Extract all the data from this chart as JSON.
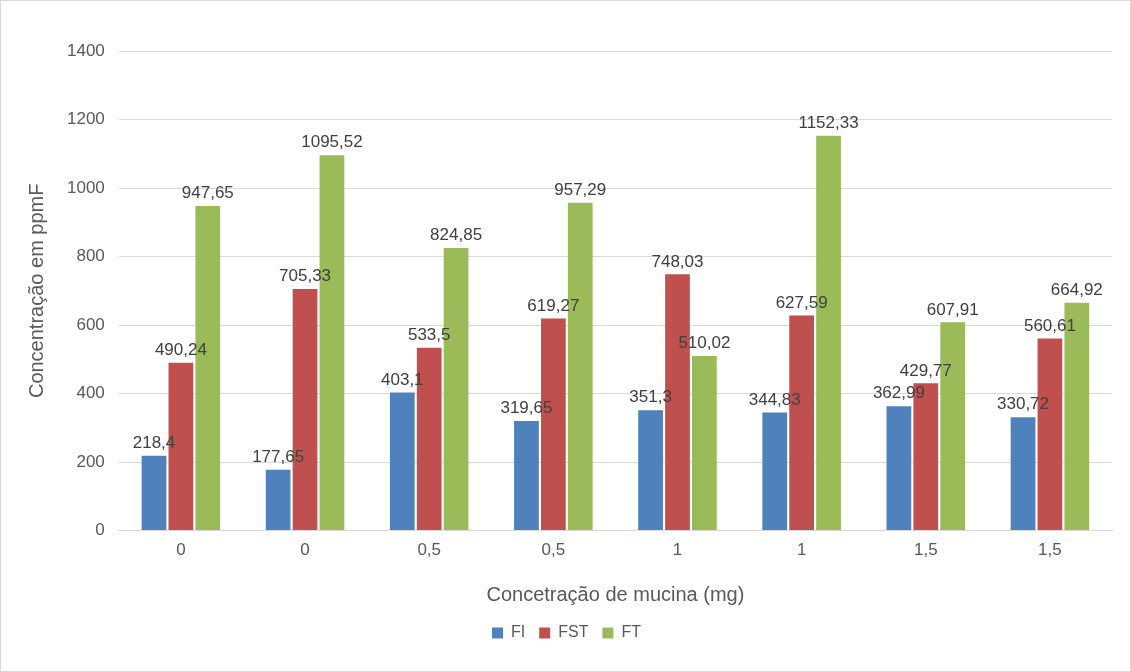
{
  "chart_data": {
    "type": "bar",
    "xlabel": "Concetração de mucina (mg)",
    "ylabel": "Concentração em ppmF",
    "categories": [
      "0",
      "0",
      "0,5",
      "0,5",
      "1",
      "1",
      "1,5",
      "1,5"
    ],
    "series": [
      {
        "name": "FI",
        "color": "#4f81bd",
        "values": [
          218.4,
          177.65,
          403.1,
          319.65,
          351.3,
          344.83,
          362.99,
          330.72
        ],
        "value_labels": [
          "218,4",
          "177,65",
          "403,1",
          "319,65",
          "351,3",
          "344,83",
          "362,99",
          "330,72"
        ]
      },
      {
        "name": "FST",
        "color": "#c0504d",
        "values": [
          490.24,
          705.33,
          533.5,
          619.27,
          748.03,
          627.59,
          429.77,
          560.61
        ],
        "value_labels": [
          "490,24",
          "705,33",
          "533,5",
          "619,27",
          "748,03",
          "627,59",
          "429,77",
          "560,61"
        ]
      },
      {
        "name": "FT",
        "color": "#9bbb59",
        "values": [
          947.65,
          1095.52,
          824.85,
          957.29,
          510.02,
          1152.33,
          607.91,
          664.92
        ],
        "value_labels": [
          "947,65",
          "1095,52",
          "824,85",
          "957,29",
          "510,02",
          "1152,33",
          "607,91",
          "664,92"
        ]
      }
    ],
    "ylim": [
      0,
      1400
    ],
    "yticks": [
      0,
      200,
      400,
      600,
      800,
      1000,
      1200,
      1400
    ],
    "grid": "y",
    "legend": "bottom"
  }
}
